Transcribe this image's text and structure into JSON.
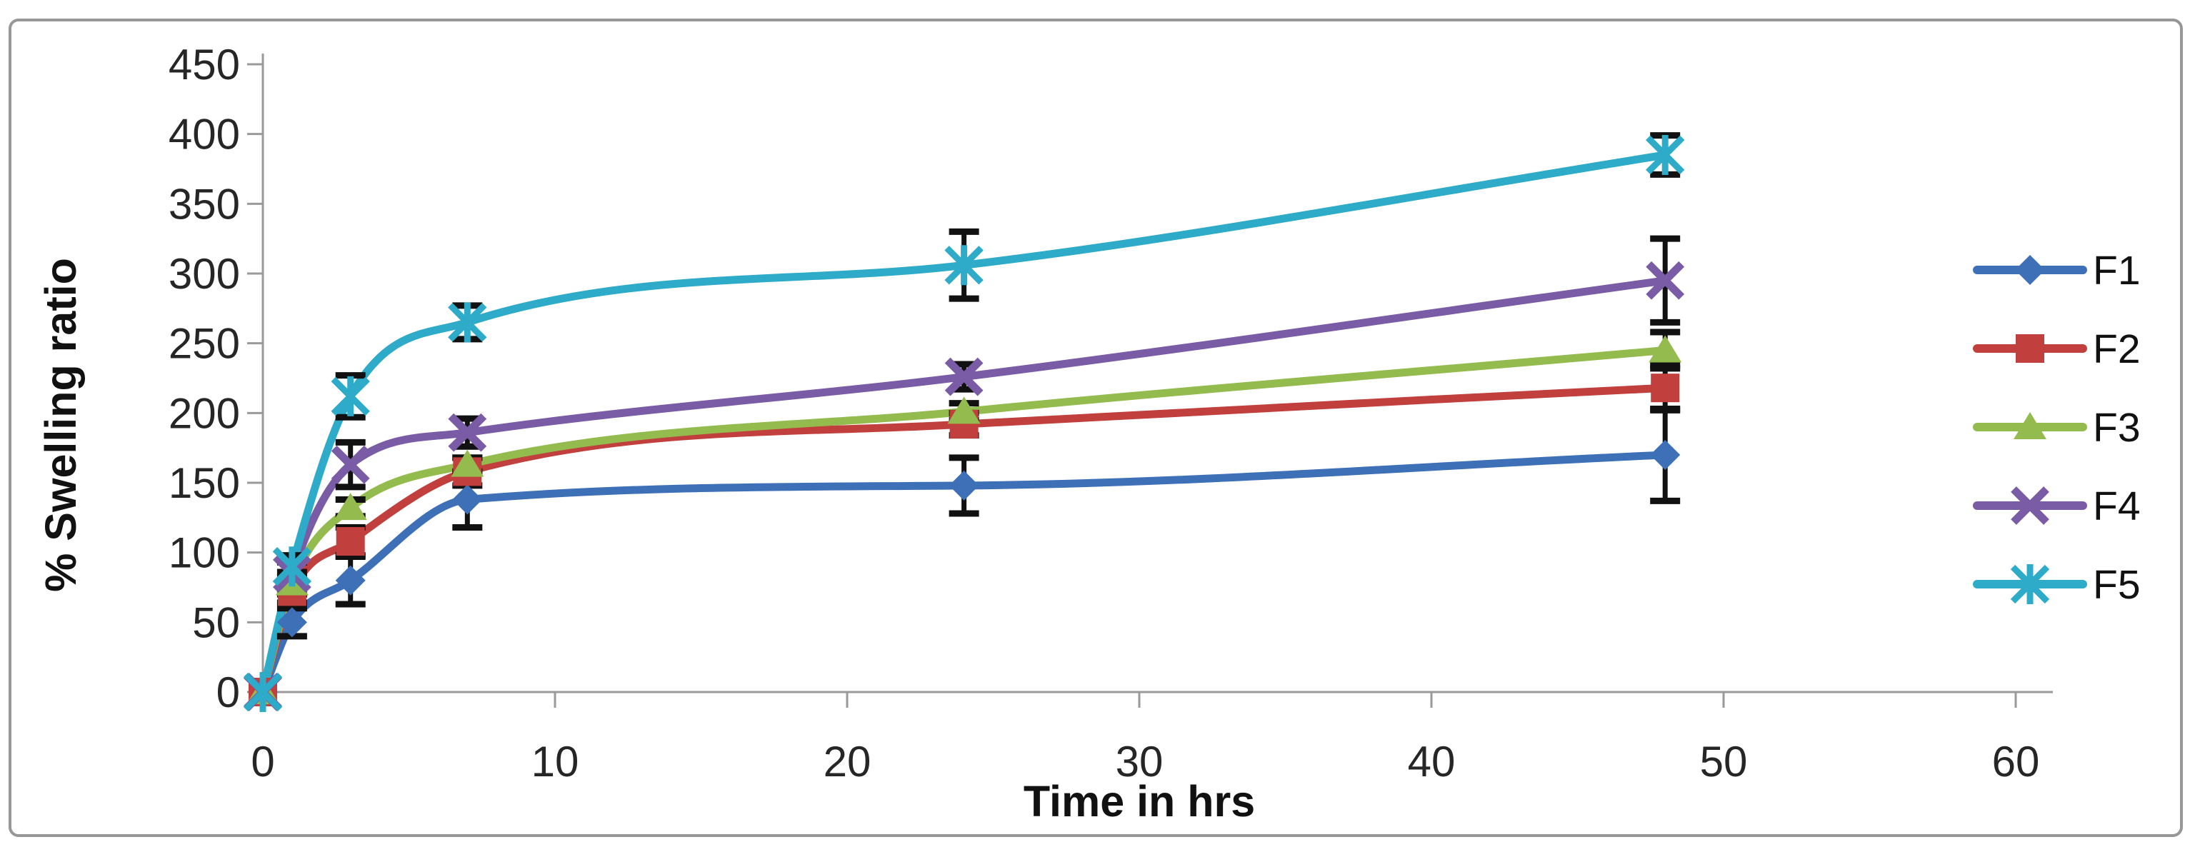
{
  "figure": {
    "background": "#ffffff",
    "border_color": "#979797",
    "axis_color": "#9a9a9a",
    "text_color": "#262626",
    "error_bar_color": "#111111"
  },
  "chart_data": {
    "type": "line",
    "title": "",
    "xlabel": "Time in hrs",
    "ylabel": "% Swelling ratio",
    "grid": false,
    "legend_position": "right",
    "xlim": [
      0,
      60
    ],
    "ylim": [
      0,
      450
    ],
    "x_ticks": [
      0,
      10,
      20,
      30,
      40,
      50,
      60
    ],
    "y_ticks": [
      0,
      50,
      100,
      150,
      200,
      250,
      300,
      350,
      400,
      450
    ],
    "x": [
      0,
      1,
      3,
      7,
      24,
      48
    ],
    "series": [
      {
        "name": "F1",
        "color": "#3e70b7",
        "marker": "diamond",
        "values": [
          0,
          50,
          80,
          138,
          148,
          170
        ],
        "errors": [
          0,
          10,
          17,
          20,
          20,
          33
        ]
      },
      {
        "name": "F2",
        "color": "#c13f3c",
        "marker": "square",
        "values": [
          0,
          72,
          108,
          158,
          192,
          218
        ],
        "errors": [
          0,
          8,
          10,
          10,
          8,
          16
        ]
      },
      {
        "name": "F3",
        "color": "#94bb4d",
        "marker": "triangle-up",
        "values": [
          0,
          78,
          132,
          163,
          201,
          245
        ],
        "errors": [
          0,
          8,
          6,
          5,
          6,
          13
        ]
      },
      {
        "name": "F4",
        "color": "#7a5ba5",
        "marker": "x-cross",
        "values": [
          0,
          85,
          163,
          186,
          226,
          295
        ],
        "errors": [
          0,
          8,
          16,
          10,
          9,
          30
        ]
      },
      {
        "name": "F5",
        "color": "#2eabc8",
        "marker": "asterisk",
        "values": [
          0,
          90,
          212,
          265,
          306,
          385
        ],
        "errors": [
          0,
          8,
          15,
          12,
          24,
          14
        ]
      }
    ]
  }
}
